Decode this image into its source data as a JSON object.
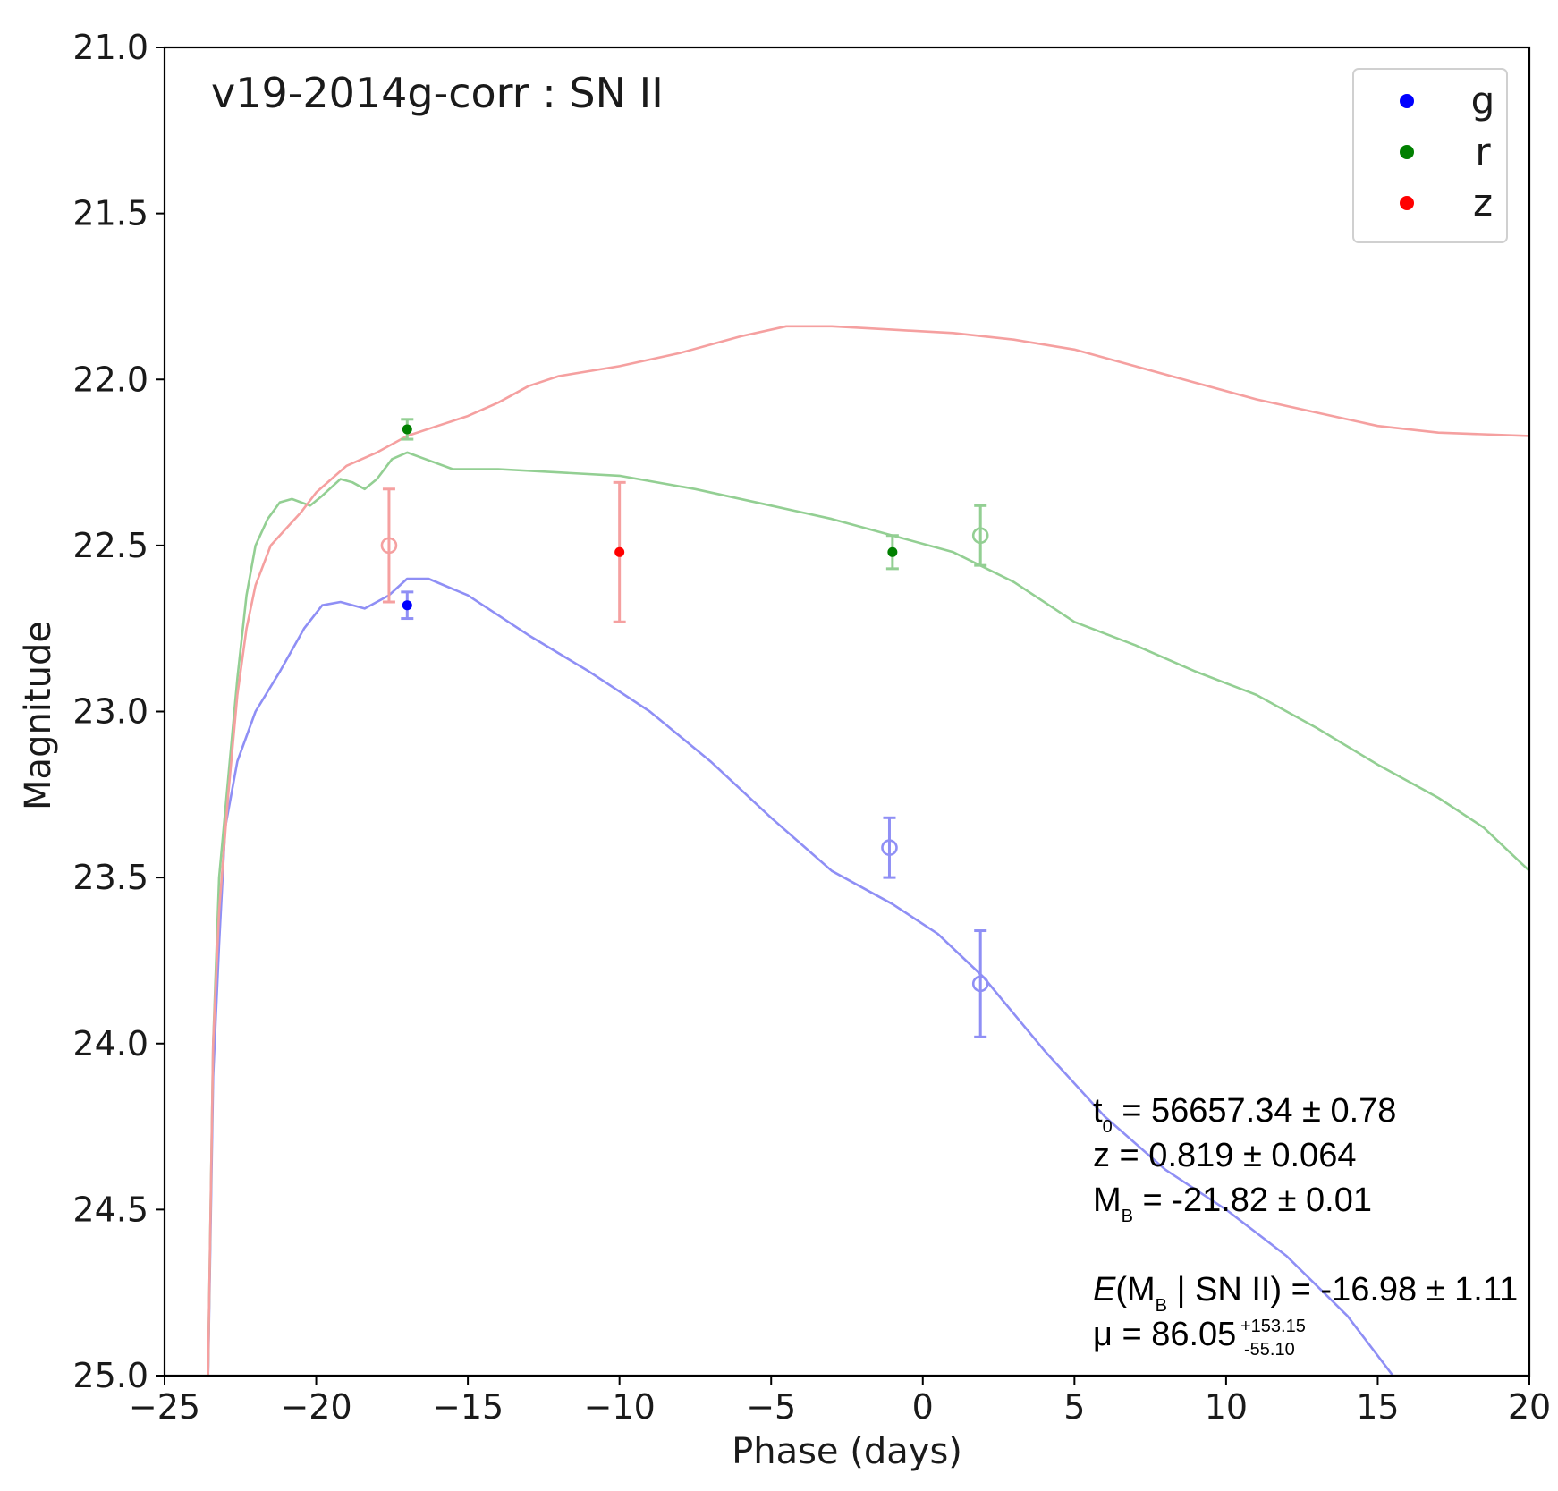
{
  "chart_data": {
    "type": "line",
    "title": "v19-2014g-corr : SN II",
    "xlabel": "Phase (days)",
    "ylabel": "Magnitude",
    "xlim": [
      -25,
      20
    ],
    "ylim": [
      21.0,
      25.0
    ],
    "y_inverted": true,
    "x_ticks": [
      -25,
      -20,
      -15,
      -10,
      -5,
      0,
      5,
      10,
      15,
      20
    ],
    "x_tick_labels": [
      "−25",
      "−20",
      "−15",
      "−10",
      "−5",
      "0",
      "5",
      "10",
      "15",
      "20"
    ],
    "y_ticks": [
      21.0,
      21.5,
      22.0,
      22.5,
      23.0,
      23.5,
      24.0,
      24.5,
      25.0
    ],
    "y_tick_labels": [
      "21.0",
      "21.5",
      "22.0",
      "22.5",
      "23.0",
      "23.5",
      "24.0",
      "24.5",
      "25.0"
    ],
    "grid": false,
    "legend_position": "top-right",
    "series": [
      {
        "name": "g",
        "color": "#0000ff",
        "curve_color": "#8f8ff5",
        "curve": [
          [
            -23.6,
            25.2
          ],
          [
            -23.4,
            24.1
          ],
          [
            -23.2,
            23.7
          ],
          [
            -23.0,
            23.35
          ],
          [
            -22.6,
            23.15
          ],
          [
            -22.0,
            23.0
          ],
          [
            -21.2,
            22.88
          ],
          [
            -20.4,
            22.75
          ],
          [
            -19.8,
            22.68
          ],
          [
            -19.2,
            22.67
          ],
          [
            -18.4,
            22.69
          ],
          [
            -17.6,
            22.65
          ],
          [
            -17.0,
            22.6
          ],
          [
            -16.3,
            22.6
          ],
          [
            -15.0,
            22.65
          ],
          [
            -13.0,
            22.77
          ],
          [
            -11.0,
            22.88
          ],
          [
            -9.0,
            23.0
          ],
          [
            -7.0,
            23.15
          ],
          [
            -5.0,
            23.32
          ],
          [
            -3.0,
            23.48
          ],
          [
            -1.0,
            23.58
          ],
          [
            0.5,
            23.67
          ],
          [
            2.0,
            23.8
          ],
          [
            4.0,
            24.02
          ],
          [
            6.0,
            24.22
          ],
          [
            8.0,
            24.38
          ],
          [
            10.0,
            24.5
          ],
          [
            12.0,
            24.64
          ],
          [
            14.0,
            24.82
          ],
          [
            15.5,
            25.0
          ]
        ],
        "points": [
          {
            "x": -17.0,
            "y": 22.68,
            "err": 0.04,
            "filled": true
          },
          {
            "x": -1.1,
            "y": 23.41,
            "err": 0.09,
            "filled": false
          },
          {
            "x": 1.9,
            "y": 23.82,
            "err": 0.16,
            "filled": false
          }
        ]
      },
      {
        "name": "r",
        "color": "#008000",
        "curve_color": "#93cf93",
        "curve": [
          [
            -23.6,
            25.2
          ],
          [
            -23.4,
            24.0
          ],
          [
            -23.2,
            23.5
          ],
          [
            -22.9,
            23.2
          ],
          [
            -22.6,
            22.9
          ],
          [
            -22.3,
            22.65
          ],
          [
            -22.0,
            22.5
          ],
          [
            -21.6,
            22.42
          ],
          [
            -21.2,
            22.37
          ],
          [
            -20.8,
            22.36
          ],
          [
            -20.5,
            22.37
          ],
          [
            -20.2,
            22.38
          ],
          [
            -19.8,
            22.35
          ],
          [
            -19.2,
            22.3
          ],
          [
            -18.8,
            22.31
          ],
          [
            -18.4,
            22.33
          ],
          [
            -18.0,
            22.3
          ],
          [
            -17.5,
            22.24
          ],
          [
            -17.0,
            22.22
          ],
          [
            -16.4,
            22.24
          ],
          [
            -15.5,
            22.27
          ],
          [
            -14.0,
            22.27
          ],
          [
            -12.0,
            22.28
          ],
          [
            -10.0,
            22.29
          ],
          [
            -7.5,
            22.33
          ],
          [
            -5.0,
            22.38
          ],
          [
            -3.0,
            22.42
          ],
          [
            -1.0,
            22.47
          ],
          [
            1.0,
            22.52
          ],
          [
            3.0,
            22.61
          ],
          [
            5.0,
            22.73
          ],
          [
            7.0,
            22.8
          ],
          [
            9.0,
            22.88
          ],
          [
            11.0,
            22.95
          ],
          [
            13.0,
            23.05
          ],
          [
            15.0,
            23.16
          ],
          [
            17.0,
            23.26
          ],
          [
            18.5,
            23.35
          ],
          [
            20.0,
            23.48
          ]
        ],
        "points": [
          {
            "x": -17.0,
            "y": 22.15,
            "err": 0.03,
            "filled": true
          },
          {
            "x": -1.0,
            "y": 22.52,
            "err": 0.05,
            "filled": true
          },
          {
            "x": 1.9,
            "y": 22.47,
            "err": 0.09,
            "filled": false
          }
        ]
      },
      {
        "name": "z",
        "color": "#ff0000",
        "curve_color": "#f5a0a0",
        "curve": [
          [
            -23.6,
            25.2
          ],
          [
            -23.4,
            24.0
          ],
          [
            -23.2,
            23.6
          ],
          [
            -22.9,
            23.25
          ],
          [
            -22.6,
            22.95
          ],
          [
            -22.3,
            22.75
          ],
          [
            -22.0,
            22.62
          ],
          [
            -21.5,
            22.5
          ],
          [
            -21.0,
            22.45
          ],
          [
            -20.5,
            22.4
          ],
          [
            -20.0,
            22.34
          ],
          [
            -19.5,
            22.3
          ],
          [
            -19.0,
            22.26
          ],
          [
            -18.0,
            22.22
          ],
          [
            -17.0,
            22.17
          ],
          [
            -16.0,
            22.14
          ],
          [
            -15.0,
            22.11
          ],
          [
            -14.0,
            22.07
          ],
          [
            -13.0,
            22.02
          ],
          [
            -12.0,
            21.99
          ],
          [
            -10.0,
            21.96
          ],
          [
            -8.0,
            21.92
          ],
          [
            -6.0,
            21.87
          ],
          [
            -4.5,
            21.84
          ],
          [
            -3.0,
            21.84
          ],
          [
            -1.0,
            21.85
          ],
          [
            1.0,
            21.86
          ],
          [
            3.0,
            21.88
          ],
          [
            5.0,
            21.91
          ],
          [
            7.0,
            21.96
          ],
          [
            9.0,
            22.01
          ],
          [
            11.0,
            22.06
          ],
          [
            13.0,
            22.1
          ],
          [
            15.0,
            22.14
          ],
          [
            17.0,
            22.16
          ],
          [
            20.0,
            22.17
          ]
        ],
        "points": [
          {
            "x": -17.6,
            "y": 22.5,
            "err": 0.17,
            "filled": false
          },
          {
            "x": -10.0,
            "y": 22.52,
            "err": 0.21,
            "filled": true
          }
        ]
      }
    ]
  },
  "annotations": {
    "t0": {
      "main": "t",
      "sub": "0",
      "rest": " = 56657.34 ± 0.78"
    },
    "z": {
      "text": "z = 0.819 ± 0.064"
    },
    "mb": {
      "main": "M",
      "sub": "B",
      "rest": " = -21.82 ± 0.01"
    },
    "expect": {
      "e": "E",
      "open": "(M",
      "sub": "B",
      "rest": " | SN II) =  -16.98 ± 1.11"
    },
    "mu": {
      "main": "μ = 86.05",
      "sup": "+153.15",
      "sub": "-55.10"
    }
  }
}
